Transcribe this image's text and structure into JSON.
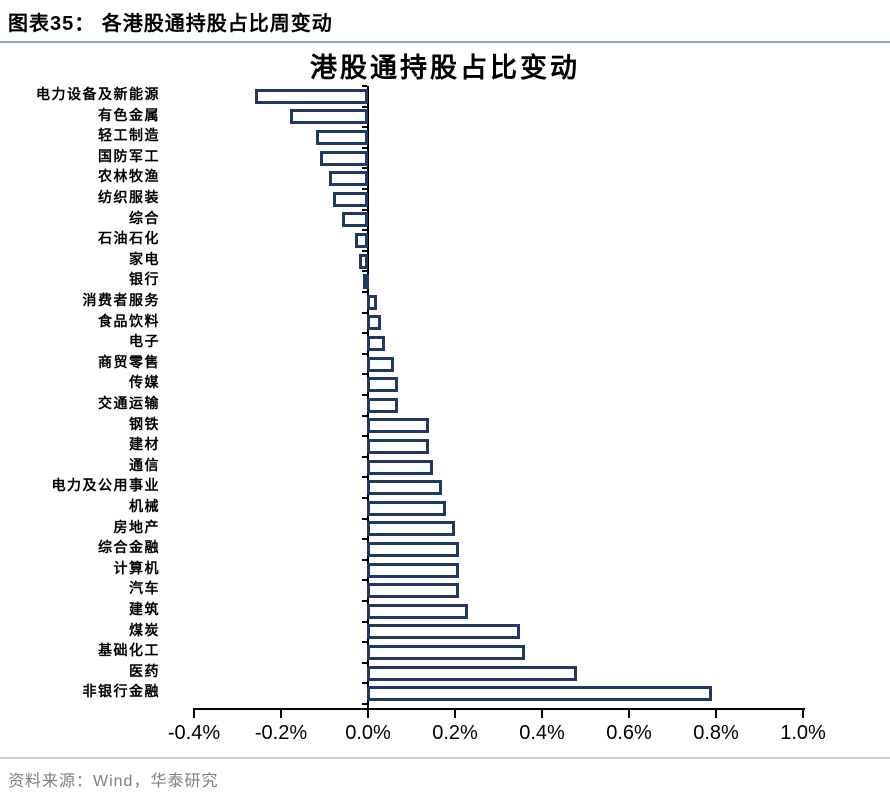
{
  "header": {
    "title": "图表35： 各港股通持股占比周变动"
  },
  "chart_data": {
    "type": "bar",
    "orientation": "horizontal",
    "title": "港股通持股占比变动",
    "value_unit": "%",
    "categories": [
      "电力设备及新能源",
      "有色金属",
      "轻工制造",
      "国防军工",
      "农林牧渔",
      "纺织服装",
      "综合",
      "石油石化",
      "家电",
      "银行",
      "消费者服务",
      "食品饮料",
      "电子",
      "商贸零售",
      "传媒",
      "交通运输",
      "钢铁",
      "建材",
      "通信",
      "电力及公用事业",
      "机械",
      "房地产",
      "综合金融",
      "计算机",
      "汽车",
      "建筑",
      "煤炭",
      "基础化工",
      "医药",
      "非银行金融"
    ],
    "values": [
      -0.26,
      -0.18,
      -0.12,
      -0.11,
      -0.09,
      -0.08,
      -0.06,
      -0.03,
      -0.02,
      -0.01,
      0.02,
      0.03,
      0.04,
      0.06,
      0.07,
      0.07,
      0.14,
      0.14,
      0.15,
      0.17,
      0.18,
      0.2,
      0.21,
      0.21,
      0.21,
      0.23,
      0.35,
      0.36,
      0.48,
      0.79
    ],
    "xlim": [
      -0.4,
      1.0
    ],
    "xticks": [
      -0.4,
      -0.2,
      0.0,
      0.2,
      0.4,
      0.6,
      0.8,
      1.0
    ],
    "xtick_labels": [
      "-0.4%",
      "-0.2%",
      "0.0%",
      "0.2%",
      "0.4%",
      "0.6%",
      "0.8%",
      "1.0%"
    ],
    "grid": false,
    "legend": null,
    "bar_border_color": "#1F3864",
    "bar_fill_color": "#FFFFFF"
  },
  "footer": {
    "source": "资料来源：Wind，华泰研究"
  },
  "colors": {
    "header_rule": "#8EA6C0",
    "footer_rule": "#C4CFDD",
    "axis": "#000000",
    "source_text": "#7F7F7F"
  }
}
